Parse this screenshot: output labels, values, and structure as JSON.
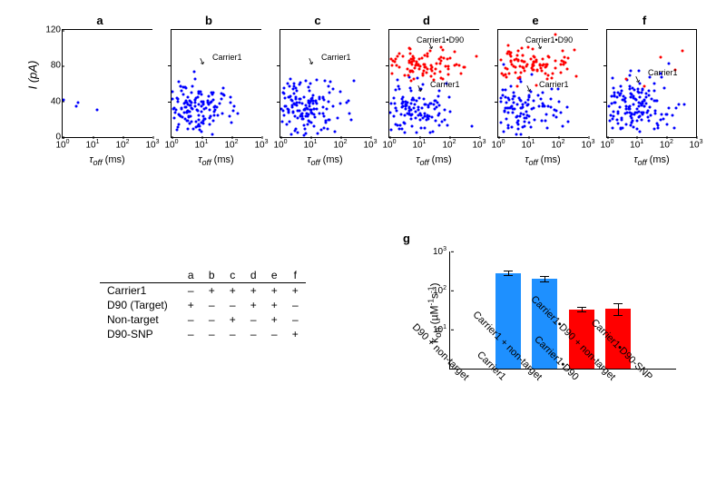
{
  "colors": {
    "blue": "#0000ff",
    "red": "#ff0000",
    "bar_blue": "#1e90ff",
    "bar_red": "#ff0000",
    "axis": "#000000",
    "bg": "#ffffff"
  },
  "scatter": {
    "ylabel_html": "<i>I</i> (pA)",
    "ylim": [
      0,
      120
    ],
    "yticks": [
      0,
      40,
      80,
      120
    ],
    "xlabel_tex": "τ_off (ms)",
    "xscale": "log",
    "xlim": [
      1,
      1000
    ],
    "xticks": [
      1,
      10,
      100,
      1000
    ],
    "xtick_labels": [
      "10⁰",
      "10¹",
      "10²",
      "10³"
    ],
    "marker_size": 3,
    "panels": [
      {
        "id": "a",
        "title": "a",
        "blue_n": 5,
        "blue_center_I": 40,
        "blue_spread_I": 10,
        "blue_center_logx": 0.4,
        "blue_spread_logx": 0.5,
        "red_n": 0,
        "annotations": []
      },
      {
        "id": "b",
        "title": "b",
        "blue_n": 160,
        "blue_center_I": 32,
        "blue_spread_I": 14,
        "blue_center_logx": 0.8,
        "blue_spread_logx": 0.7,
        "red_n": 0,
        "annotations": [
          {
            "text": "Carrier1",
            "x": 45,
            "y": 25,
            "arrow_to": {
              "x": 33,
              "y": 35
            }
          }
        ]
      },
      {
        "id": "c",
        "title": "c",
        "blue_n": 180,
        "blue_center_I": 34,
        "blue_spread_I": 15,
        "blue_center_logx": 0.8,
        "blue_spread_logx": 0.7,
        "red_n": 0,
        "annotations": [
          {
            "text": "Carrier1",
            "x": 45,
            "y": 25,
            "arrow_to": {
              "x": 33,
              "y": 35
            }
          }
        ]
      },
      {
        "id": "d",
        "title": "d",
        "blue_n": 130,
        "blue_center_I": 30,
        "blue_spread_I": 14,
        "blue_center_logx": 0.7,
        "blue_spread_logx": 0.7,
        "red_n": 100,
        "red_center_I": 82,
        "red_spread_I": 8,
        "red_center_logx": 1.0,
        "red_spread_logx": 0.7,
        "annotations": [
          {
            "text": "Carrier1•D90",
            "x": 30,
            "y": 6,
            "arrow_to": {
              "x": 45,
              "y": 18
            }
          },
          {
            "text": "Carrier1",
            "x": 45,
            "y": 55,
            "arrow_to": {
              "x": 33,
              "y": 65
            }
          }
        ]
      },
      {
        "id": "e",
        "title": "e",
        "blue_n": 140,
        "blue_center_I": 30,
        "blue_spread_I": 15,
        "blue_center_logx": 0.7,
        "blue_spread_logx": 0.7,
        "red_n": 110,
        "red_center_I": 82,
        "red_spread_I": 10,
        "red_center_logx": 1.0,
        "red_spread_logx": 0.75,
        "annotations": [
          {
            "text": "Carrier1•D90",
            "x": 30,
            "y": 6,
            "arrow_to": {
              "x": 45,
              "y": 18
            }
          },
          {
            "text": "Carrier1",
            "x": 45,
            "y": 55,
            "arrow_to": {
              "x": 33,
              "y": 65
            }
          }
        ]
      },
      {
        "id": "f",
        "title": "f",
        "blue_n": 180,
        "blue_center_I": 32,
        "blue_spread_I": 16,
        "blue_center_logx": 0.8,
        "blue_spread_logx": 0.75,
        "red_n": 6,
        "red_center_I": 85,
        "red_spread_I": 20,
        "red_center_logx": 1.2,
        "red_spread_logx": 0.9,
        "annotations": [
          {
            "text": "Carrier1",
            "x": 45,
            "y": 42,
            "arrow_to": {
              "x": 33,
              "y": 55
            }
          }
        ]
      }
    ]
  },
  "conditions_table": {
    "columns": [
      "a",
      "b",
      "c",
      "d",
      "e",
      "f"
    ],
    "rows": [
      {
        "label": "Carrier1",
        "values": [
          "–",
          "+",
          "+",
          "+",
          "+",
          "+"
        ]
      },
      {
        "label": "D90 (Target)",
        "values": [
          "+",
          "–",
          "–",
          "+",
          "+",
          "–"
        ]
      },
      {
        "label": "Non-target",
        "values": [
          "–",
          "–",
          "+",
          "–",
          "+",
          "–"
        ]
      },
      {
        "label": "D90-SNP",
        "values": [
          "–",
          "–",
          "–",
          "–",
          "–",
          "+"
        ]
      }
    ]
  },
  "panel_g": {
    "title": "g",
    "ylabel_html": "k<sub>on</sub> (µM<sup>-1</sup>s<sup>-1</sup>)",
    "yscale": "log",
    "ylim": [
      1,
      1000
    ],
    "yticks": [
      10,
      100,
      1000
    ],
    "ytick_labels": [
      "10¹",
      "10²",
      "10³"
    ],
    "bars": [
      {
        "label": "D90 + non-target",
        "value": null,
        "err": null,
        "color": null
      },
      {
        "label": "Carrier1",
        "value": 280,
        "err": 40,
        "color": "#1e90ff"
      },
      {
        "label": "Carrier1 + non-target",
        "value": 200,
        "err": 35,
        "color": "#1e90ff"
      },
      {
        "label": "Carrier1•D90",
        "value": 33,
        "err": 6,
        "color": "#ff0000"
      },
      {
        "label": "Carrier1•D90 + non-target",
        "value": 35,
        "err": 13,
        "color": "#ff0000"
      },
      {
        "label": "Carrier1•D90-SNP",
        "value": null,
        "err": null,
        "color": null
      }
    ]
  }
}
